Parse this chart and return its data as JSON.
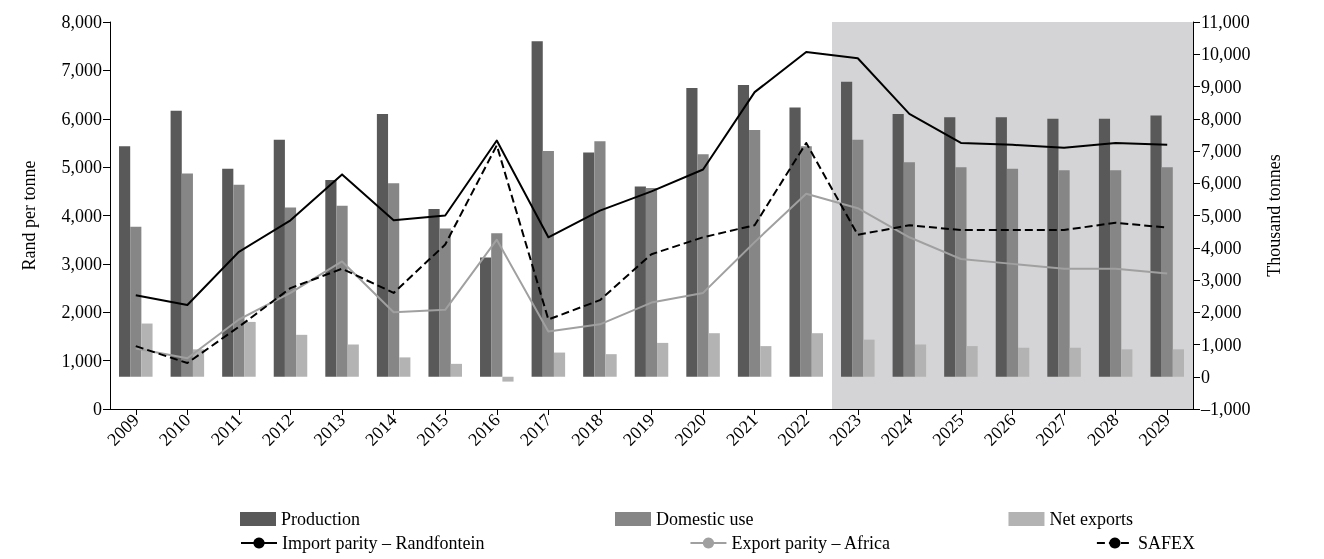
{
  "chart_data": {
    "type": "bar",
    "ylabel": "Rand per tonne",
    "y2label": "Thousand tonnes",
    "categories": [
      "2009",
      "2010",
      "2011",
      "2012",
      "2013",
      "2014",
      "2015",
      "2016",
      "2017",
      "2018",
      "2019",
      "2020",
      "2021",
      "2022",
      "2023",
      "2024",
      "2025",
      "2026",
      "2027",
      "2028",
      "2029"
    ],
    "series": [
      {
        "name": "Production",
        "color": "#595959",
        "axis": "y2",
        "values": [
          7150,
          8250,
          6450,
          7350,
          6100,
          8150,
          5200,
          3700,
          10400,
          6950,
          5900,
          8950,
          9050,
          8350,
          9150,
          8150,
          8050,
          8050,
          8000,
          8000,
          8100
        ]
      },
      {
        "name": "Domestic use",
        "color": "#868686",
        "axis": "y2",
        "values": [
          4650,
          6300,
          5950,
          5250,
          5300,
          6000,
          4600,
          4450,
          7000,
          7300,
          5850,
          6900,
          7650,
          7150,
          7350,
          6650,
          6500,
          6450,
          6400,
          6400,
          6500
        ]
      },
      {
        "name": "Net exports",
        "color": "#b3b3b3",
        "axis": "y2",
        "values": [
          1650,
          850,
          1700,
          1300,
          1000,
          600,
          400,
          -150,
          750,
          700,
          1050,
          1350,
          950,
          1350,
          1150,
          1000,
          950,
          900,
          900,
          850,
          850
        ]
      },
      {
        "name": "Import parity – Randfontein",
        "type": "line",
        "color": "#000000",
        "line_style": "solid",
        "values": [
          2350,
          2150,
          3250,
          3900,
          4850,
          3900,
          4000,
          5550,
          3550,
          4100,
          4500,
          4950,
          6550,
          7380,
          7250,
          6100,
          5500,
          5460,
          5400,
          5500,
          5460
        ]
      },
      {
        "name": "Export parity – Africa",
        "type": "line",
        "color": "#a0a0a0",
        "line_style": "solid",
        "values": [
          1250,
          1050,
          1850,
          2400,
          3050,
          2000,
          2050,
          3500,
          1600,
          1750,
          2200,
          2400,
          3450,
          4450,
          4150,
          3550,
          3100,
          3000,
          2900,
          2900,
          2800
        ]
      },
      {
        "name": "SAFEX",
        "type": "line",
        "color": "#000000",
        "line_style": "dashed",
        "values": [
          1300,
          950,
          1700,
          2500,
          2900,
          2400,
          3400,
          5450,
          1850,
          2250,
          3200,
          3550,
          3800,
          5500,
          3600,
          3800,
          3700,
          3700,
          3700,
          3850,
          3750
        ]
      }
    ],
    "ylim": [
      0,
      8000
    ],
    "yticks": [
      0,
      {
        "value": 1000,
        "label": "1,000"
      },
      {
        "value": 2000,
        "label": "2,000"
      },
      {
        "value": 3000,
        "label": "3,000"
      },
      {
        "value": 4000,
        "label": "4,000"
      },
      {
        "value": 5000,
        "label": "5,000"
      },
      {
        "value": 6000,
        "label": "6,000"
      },
      {
        "value": 7000,
        "label": "7,000"
      },
      {
        "value": 8000,
        "label": "8,000"
      }
    ],
    "y2lim": [
      -1000,
      11000
    ],
    "y2ticks": [
      {
        "value": -1000,
        "label": "–1,000"
      },
      0,
      {
        "value": 1000,
        "label": "1,000"
      },
      {
        "value": 2000,
        "label": "2,000"
      },
      {
        "value": 3000,
        "label": "3,000"
      },
      {
        "value": 4000,
        "label": "4,000"
      },
      {
        "value": 5000,
        "label": "5,000"
      },
      {
        "value": 6000,
        "label": "6,000"
      },
      {
        "value": 7000,
        "label": "7,000"
      },
      {
        "value": 8000,
        "label": "8,000"
      },
      {
        "value": 9000,
        "label": "9,000"
      },
      {
        "value": 10000,
        "label": "10,000"
      },
      {
        "value": 11000,
        "label": "11,000"
      }
    ],
    "bands": [
      {
        "axis": "x",
        "from": "2023",
        "to": "2029",
        "color": "#d4d4d6"
      }
    ],
    "marker": "none",
    "grid": false,
    "legend": "bottom"
  }
}
